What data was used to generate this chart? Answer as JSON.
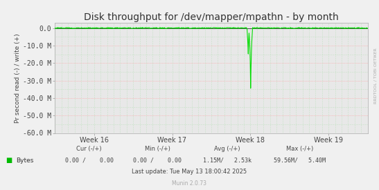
{
  "title": "Disk throughput for /dev/mapper/mpathn - by month",
  "ylabel": "Pr second read (-) / write (+)",
  "background_color": "#f0f0f0",
  "plot_bg_color": "#e8e8e8",
  "grid_color_h": "#ff9999",
  "grid_color_v": "#aaddaa",
  "ylim": [
    -60000000,
    3000000
  ],
  "yticks": [
    0,
    -10000000,
    -20000000,
    -30000000,
    -40000000,
    -50000000,
    -60000000
  ],
  "ytick_labels": [
    "0.0",
    "-10.0 M",
    "-20.0 M",
    "-30.0 M",
    "-40.0 M",
    "-50.0 M",
    "-60.0 M"
  ],
  "x_week_labels": [
    "Week 16",
    "Week 17",
    "Week 18",
    "Week 19"
  ],
  "line_color": "#00dd00",
  "watermark": "RRDTOOL / TOBI OETIKER",
  "munin_version": "Munin 2.0.73",
  "legend_label": "Bytes",
  "legend_color": "#00bb00",
  "stats_cur": "0.00 /    0.00",
  "stats_min": "0.00 /    0.00",
  "stats_avg": "1.15M/   2.53k",
  "stats_max": "59.56M/   5.40M",
  "last_update": "Last update: Tue May 13 18:00:42 2025",
  "title_fontsize": 10,
  "tick_fontsize": 7,
  "small_fontsize": 6
}
